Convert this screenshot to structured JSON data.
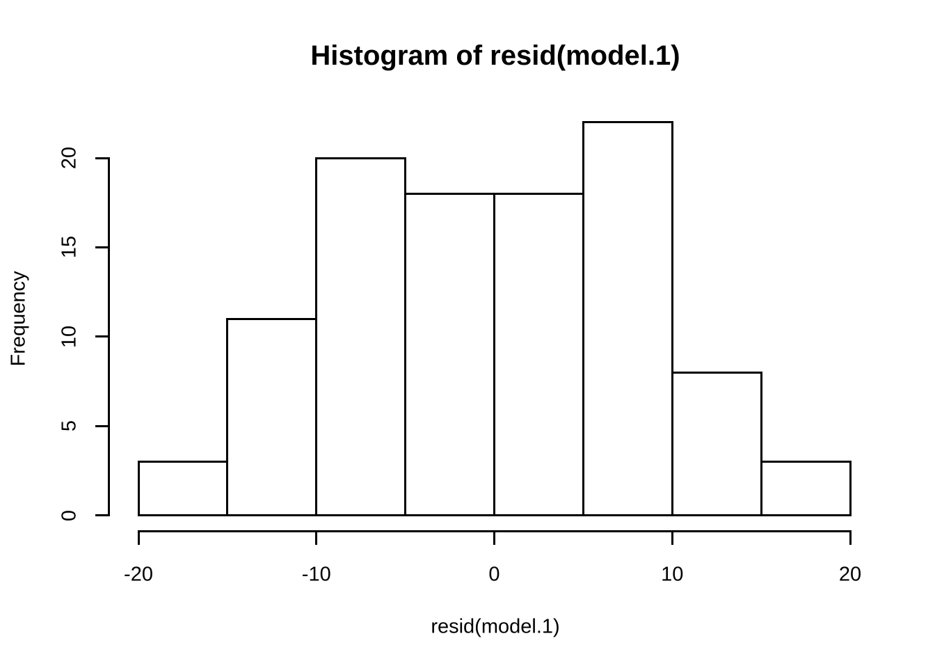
{
  "figure": {
    "title": "Histogram of resid(model.1)",
    "background_color": "#ffffff",
    "stroke_color": "#000000"
  },
  "chart_data": {
    "type": "bar",
    "subtype": "histogram",
    "title": "Histogram of resid(model.1)",
    "xlabel": "resid(model.1)",
    "ylabel": "Frequency",
    "bin_breaks": [
      -20,
      -15,
      -10,
      -5,
      0,
      5,
      10,
      15,
      20
    ],
    "bin_width": 5,
    "frequencies": [
      3,
      11,
      20,
      18,
      18,
      22,
      8,
      3
    ],
    "x_ticks": [
      -20,
      -10,
      0,
      10,
      20
    ],
    "y_ticks": [
      0,
      5,
      10,
      15,
      20
    ],
    "xlim": [
      -20,
      20
    ],
    "ylim": [
      0,
      22
    ],
    "bar_fill": "#ffffff",
    "bar_stroke": "#000000",
    "text_color": "#000000",
    "grid": "off",
    "legend": "none"
  }
}
